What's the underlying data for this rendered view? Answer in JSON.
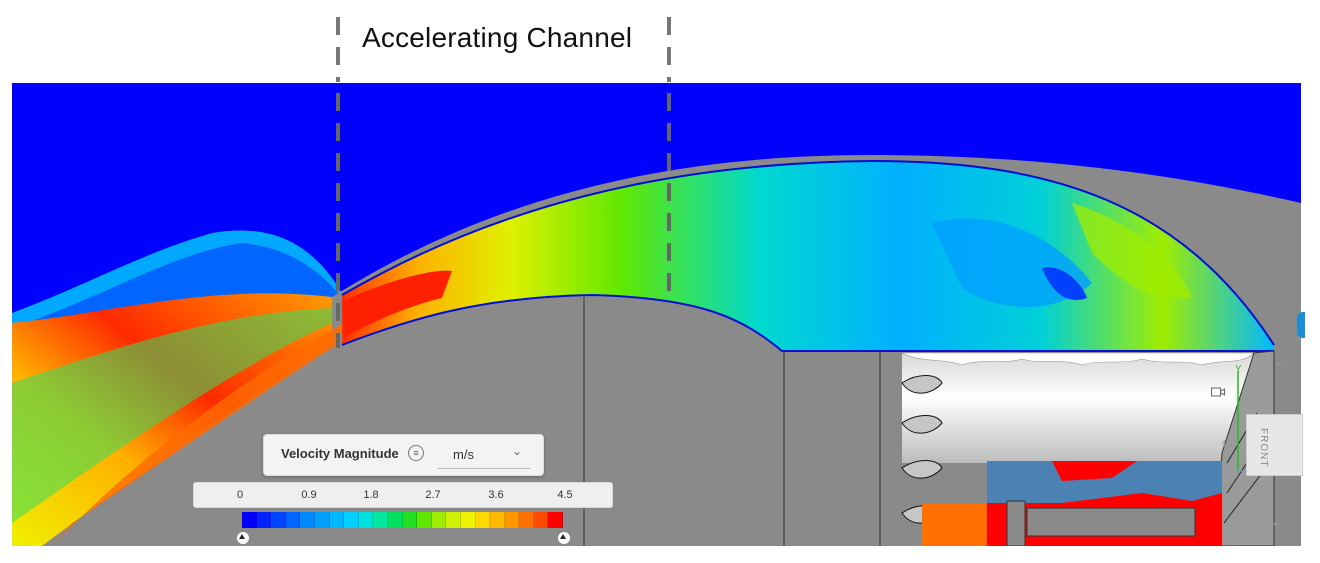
{
  "annotation": {
    "title": "Accelerating Channel"
  },
  "legend": {
    "quantity": "Velocity Magnitude",
    "info_icon": "menu-circle-icon",
    "unit": "m/s",
    "unit_icon": "chevron-down-icon",
    "ticks": [
      "0",
      "0.9",
      "1.8",
      "2.7",
      "3.6",
      "4.5"
    ],
    "range": [
      0,
      4.5
    ],
    "colors": [
      "#0000ff",
      "#0022ff",
      "#0044ff",
      "#0066ff",
      "#0088ff",
      "#00a0ff",
      "#00b8ff",
      "#00d0ff",
      "#00e0e0",
      "#00e8a0",
      "#00e060",
      "#20e020",
      "#60e800",
      "#a0ec00",
      "#d0f000",
      "#f0f000",
      "#ffd800",
      "#ffb800",
      "#ff9800",
      "#ff7000",
      "#ff4800",
      "#ff0000"
    ]
  },
  "viewcube": {
    "front_label": "FRONT",
    "axis_y": "Y"
  }
}
